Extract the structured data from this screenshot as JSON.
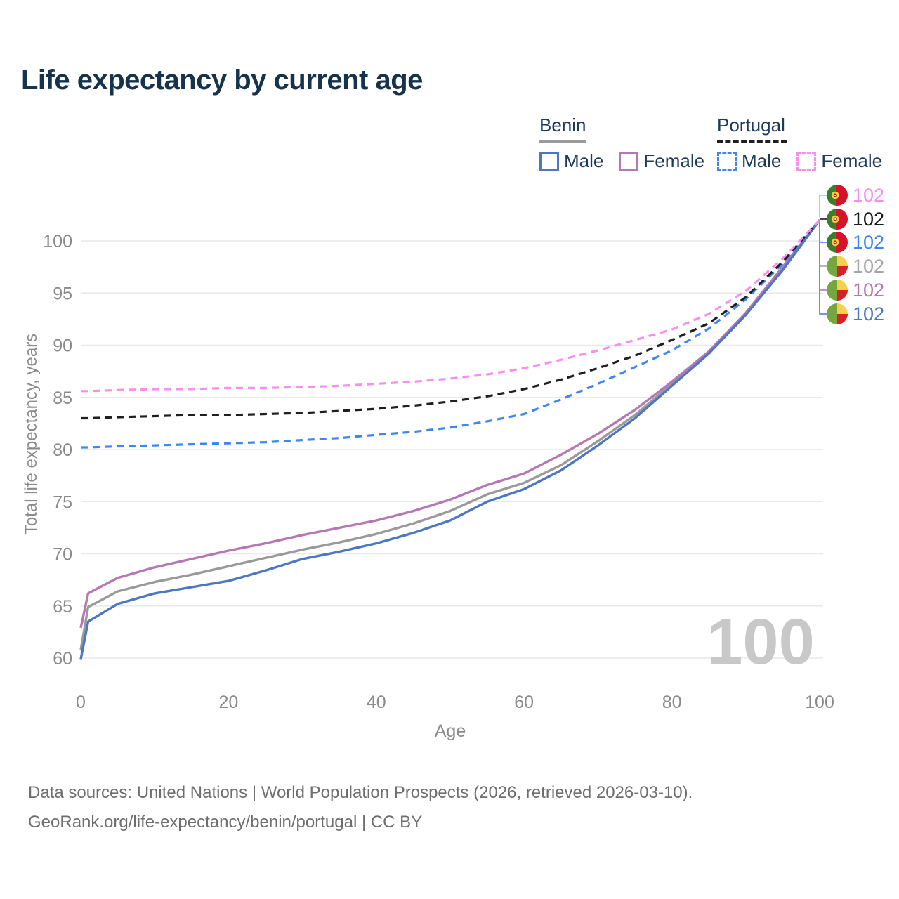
{
  "title": "Life expectancy by current age",
  "colors": {
    "title_text": "#16334d",
    "legend_text": "#1d3a5c",
    "axis_text": "#8a8a8a",
    "grid": "#e9e9e9",
    "watermark_text": "#c8c8c8",
    "footer_text": "#6e6e6e"
  },
  "legend": {
    "groups": [
      {
        "label": "Benin",
        "line_style": "solid",
        "underline_color": "#9a9a9a",
        "items": [
          {
            "label": "Male",
            "color": "#4d77c3"
          },
          {
            "label": "Female",
            "color": "#b578b5"
          }
        ]
      },
      {
        "label": "Portugal",
        "line_style": "dashed",
        "underline_color": "#1f1f1f",
        "items": [
          {
            "label": "Male",
            "color": "#3f86f5"
          },
          {
            "label": "Female",
            "color": "#fb8cf0"
          }
        ]
      }
    ]
  },
  "chart_data": {
    "type": "line",
    "title": "Life expectancy by current age",
    "xlabel": "Age",
    "ylabel": "Total life expectancy, years",
    "xlim": [
      0,
      100
    ],
    "ylim": [
      58.5,
      104.5
    ],
    "x_ticks": [
      0,
      20,
      40,
      60,
      80,
      100
    ],
    "y_ticks": [
      60,
      65,
      70,
      75,
      80,
      85,
      90,
      95,
      100
    ],
    "grid": "horizontal-only",
    "legend_position": "top-right",
    "watermark": "100",
    "x": [
      0,
      1,
      5,
      10,
      15,
      20,
      25,
      30,
      35,
      40,
      45,
      50,
      55,
      60,
      65,
      70,
      75,
      80,
      85,
      90,
      95,
      100
    ],
    "series": [
      {
        "name": "Benin Both sexes",
        "country": "Benin",
        "sex": "Both",
        "color": "#9a9a9a",
        "dashed": false,
        "end_label": "102",
        "values": [
          60.8,
          64.9,
          66.4,
          67.3,
          68.0,
          68.8,
          69.6,
          70.4,
          71.1,
          71.9,
          72.9,
          74.1,
          75.7,
          76.8,
          78.5,
          80.8,
          83.3,
          86.3,
          89.3,
          93.0,
          97.4,
          102
        ]
      },
      {
        "name": "Benin Female",
        "country": "Benin",
        "sex": "Female",
        "color": "#b578b5",
        "dashed": false,
        "end_label": "102",
        "values": [
          62.9,
          66.2,
          67.7,
          68.7,
          69.5,
          70.3,
          71.0,
          71.8,
          72.5,
          73.2,
          74.1,
          75.2,
          76.6,
          77.7,
          79.5,
          81.5,
          83.8,
          86.5,
          89.4,
          93.1,
          97.5,
          102
        ]
      },
      {
        "name": "Benin Male",
        "country": "Benin",
        "sex": "Male",
        "color": "#4d77c3",
        "dashed": false,
        "end_label": "102",
        "values": [
          59.9,
          63.5,
          65.2,
          66.2,
          66.8,
          67.4,
          68.4,
          69.5,
          70.2,
          71.0,
          72.0,
          73.2,
          75.0,
          76.2,
          78.0,
          80.4,
          83.0,
          86.1,
          89.2,
          92.9,
          97.2,
          102
        ]
      },
      {
        "name": "Portugal Male",
        "country": "Portugal",
        "sex": "Male",
        "color": "#3f86f5",
        "dashed": true,
        "end_label": "102",
        "values": [
          80.2,
          80.2,
          80.3,
          80.4,
          80.5,
          80.6,
          80.7,
          80.9,
          81.1,
          81.4,
          81.7,
          82.1,
          82.7,
          83.4,
          84.8,
          86.3,
          87.9,
          89.5,
          91.6,
          94.4,
          97.8,
          102
        ]
      },
      {
        "name": "Portugal Both sexes",
        "country": "Portugal",
        "sex": "Both",
        "color": "#1f1f1f",
        "dashed": true,
        "end_label": "102",
        "values": [
          83.0,
          83.0,
          83.1,
          83.2,
          83.3,
          83.3,
          83.4,
          83.5,
          83.7,
          83.9,
          84.2,
          84.6,
          85.1,
          85.8,
          86.7,
          87.8,
          89.0,
          90.5,
          92.1,
          94.6,
          98.0,
          102
        ]
      },
      {
        "name": "Portugal Female",
        "country": "Portugal",
        "sex": "Female",
        "color": "#fb8cf0",
        "dashed": true,
        "end_label": "102",
        "values": [
          85.6,
          85.6,
          85.7,
          85.8,
          85.8,
          85.9,
          85.9,
          86.0,
          86.1,
          86.3,
          86.5,
          86.8,
          87.2,
          87.8,
          88.6,
          89.5,
          90.5,
          91.5,
          93.0,
          95.2,
          98.3,
          102
        ]
      }
    ]
  },
  "right_labels": [
    {
      "flag": "portugal",
      "series": "Portugal Female",
      "color": "#fb8cf0",
      "value": "102"
    },
    {
      "flag": "portugal",
      "series": "Portugal Both sexes",
      "color": "#1a1a1a",
      "value": "102"
    },
    {
      "flag": "portugal",
      "series": "Portugal Male",
      "color": "#3f86f5",
      "value": "102"
    },
    {
      "flag": "benin",
      "series": "Benin Both sexes",
      "color": "#a6a6a6",
      "value": "102"
    },
    {
      "flag": "benin",
      "series": "Benin Female",
      "color": "#b578b5",
      "value": "102"
    },
    {
      "flag": "benin",
      "series": "Benin Male",
      "color": "#4d77c3",
      "value": "102"
    }
  ],
  "footer": {
    "line1": "Data sources: United Nations | World Population Prospects (2026, retrieved 2026-03-10).",
    "line2": "GeoRank.org/life-expectancy/benin/portugal | CC BY"
  }
}
